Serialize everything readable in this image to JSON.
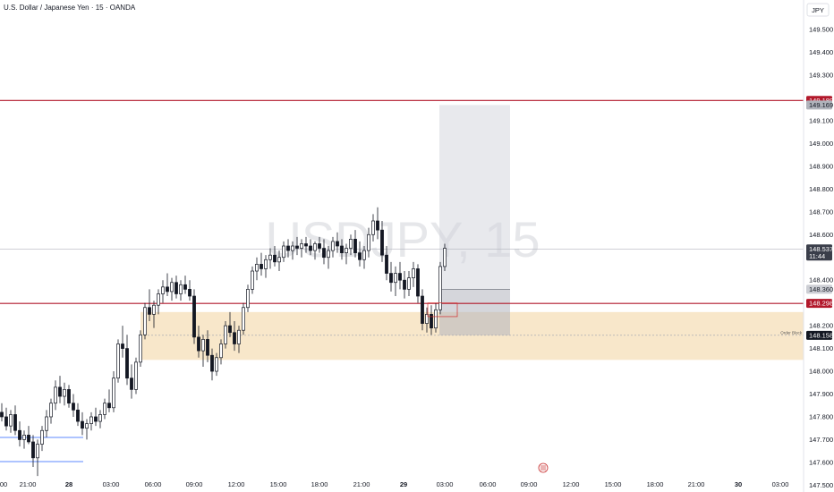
{
  "header": {
    "title": "U.S. Dollar / Japanese Yen · 15 · OANDA",
    "watermark": "USDJPY, 15",
    "currency": "JPY"
  },
  "chart_data": {
    "type": "candlestick",
    "symbol": "USDJPY",
    "interval": "15",
    "broker": "OANDA",
    "ylim": [
      147.47,
      149.63
    ],
    "y_ticks": [
      "149.500",
      "149.400",
      "149.300",
      "149.100",
      "149.000",
      "148.900",
      "148.800",
      "148.700",
      "148.600",
      "148.400",
      "148.200",
      "148.100",
      "148.000",
      "147.900",
      "147.800",
      "147.700",
      "147.600",
      "147.500"
    ],
    "x_ticks": [
      "00",
      "21:00",
      "28",
      "03:00",
      "06:00",
      "09:00",
      "12:00",
      "15:00",
      "18:00",
      "21:00",
      "29",
      "03:00",
      "06:00",
      "09:00",
      "12:00",
      "15:00",
      "18:00",
      "21:00",
      "30",
      "03:00"
    ],
    "price_tags": [
      {
        "label": "149.189",
        "price": 149.189,
        "bg": "#b2182b",
        "fg": "#ffffff"
      },
      {
        "label": "149.169",
        "price": 149.169,
        "bg": "#b0b3bb",
        "fg": "#131722"
      },
      {
        "label": "148.537",
        "price": 148.537,
        "bg": "#3a3e4a",
        "fg": "#ffffff",
        "sub": "11:44"
      },
      {
        "label": "148.360",
        "price": 148.36,
        "bg": "#ccced4",
        "fg": "#131722"
      },
      {
        "label": "148.298",
        "price": 148.298,
        "bg": "#b2182b",
        "fg": "#ffffff"
      },
      {
        "label": "148.158",
        "price": 148.158,
        "bg": "#131722",
        "fg": "#ffffff"
      }
    ],
    "order_block": {
      "label": "Order Block",
      "top": 148.26,
      "bottom": 148.05
    },
    "horizontal_lines": [
      {
        "price": 149.189,
        "color": "#b2182b"
      },
      {
        "price": 148.298,
        "color": "#b2182b"
      }
    ],
    "position_box": {
      "entry": 148.36,
      "target": 149.169,
      "stop": 148.158
    },
    "candles": [
      [
        147.82,
        147.86,
        147.78,
        147.8
      ],
      [
        147.8,
        147.84,
        147.74,
        147.76
      ],
      [
        147.76,
        147.83,
        147.73,
        147.81
      ],
      [
        147.81,
        147.85,
        147.72,
        147.74
      ],
      [
        147.74,
        147.78,
        147.67,
        147.7
      ],
      [
        147.7,
        147.74,
        147.66,
        147.72
      ],
      [
        147.72,
        147.76,
        147.68,
        147.69
      ],
      [
        147.69,
        147.72,
        147.58,
        147.62
      ],
      [
        147.62,
        147.7,
        147.54,
        147.68
      ],
      [
        147.68,
        147.76,
        147.65,
        147.74
      ],
      [
        147.74,
        147.83,
        147.71,
        147.8
      ],
      [
        147.8,
        147.88,
        147.77,
        147.86
      ],
      [
        147.86,
        147.96,
        147.83,
        147.93
      ],
      [
        147.93,
        147.98,
        147.86,
        147.89
      ],
      [
        147.89,
        147.95,
        147.85,
        147.92
      ],
      [
        147.92,
        147.94,
        147.84,
        147.86
      ],
      [
        147.86,
        147.9,
        147.8,
        147.83
      ],
      [
        147.83,
        147.86,
        147.76,
        147.78
      ],
      [
        147.78,
        147.82,
        147.72,
        147.75
      ],
      [
        147.75,
        147.79,
        147.7,
        147.77
      ],
      [
        147.77,
        147.82,
        147.74,
        147.8
      ],
      [
        147.8,
        147.84,
        147.76,
        147.78
      ],
      [
        147.78,
        147.83,
        147.75,
        147.81
      ],
      [
        147.81,
        147.88,
        147.79,
        147.86
      ],
      [
        147.86,
        147.92,
        147.82,
        147.84
      ],
      [
        147.84,
        148.0,
        147.82,
        147.97
      ],
      [
        147.97,
        148.14,
        147.95,
        148.12
      ],
      [
        148.12,
        148.2,
        148.06,
        148.1
      ],
      [
        148.1,
        148.16,
        147.94,
        147.97
      ],
      [
        147.97,
        148.03,
        147.88,
        147.92
      ],
      [
        147.92,
        148.06,
        147.9,
        148.04
      ],
      [
        148.04,
        148.18,
        148.02,
        148.16
      ],
      [
        148.16,
        148.3,
        148.14,
        148.28
      ],
      [
        148.28,
        148.36,
        148.22,
        148.25
      ],
      [
        148.25,
        148.31,
        148.19,
        148.29
      ],
      [
        148.29,
        148.36,
        148.25,
        148.34
      ],
      [
        148.34,
        148.4,
        148.3,
        148.37
      ],
      [
        148.37,
        148.43,
        148.33,
        148.35
      ],
      [
        148.35,
        148.41,
        148.31,
        148.39
      ],
      [
        148.39,
        148.42,
        148.32,
        148.34
      ],
      [
        148.34,
        148.4,
        148.31,
        148.38
      ],
      [
        148.38,
        148.42,
        148.34,
        148.36
      ],
      [
        148.36,
        148.4,
        148.31,
        148.33
      ],
      [
        148.33,
        148.36,
        148.12,
        148.15
      ],
      [
        148.15,
        148.2,
        148.06,
        148.09
      ],
      [
        148.09,
        148.16,
        148.02,
        148.14
      ],
      [
        148.14,
        148.18,
        148.04,
        148.07
      ],
      [
        148.07,
        148.1,
        147.96,
        148.0
      ],
      [
        148.0,
        148.08,
        147.98,
        148.06
      ],
      [
        148.06,
        148.14,
        148.03,
        148.12
      ],
      [
        148.12,
        148.22,
        148.1,
        148.2
      ],
      [
        148.2,
        148.26,
        148.15,
        148.17
      ],
      [
        148.17,
        148.22,
        148.09,
        148.12
      ],
      [
        148.12,
        148.2,
        148.08,
        148.18
      ],
      [
        148.18,
        148.3,
        148.16,
        148.28
      ],
      [
        148.28,
        148.38,
        148.26,
        148.36
      ],
      [
        148.36,
        148.46,
        148.34,
        148.44
      ],
      [
        148.44,
        148.5,
        148.4,
        148.47
      ],
      [
        148.47,
        148.52,
        148.42,
        148.45
      ],
      [
        148.45,
        148.51,
        148.41,
        148.49
      ],
      [
        148.49,
        148.54,
        148.45,
        148.51
      ],
      [
        148.51,
        148.55,
        148.46,
        148.48
      ],
      [
        148.48,
        148.53,
        148.44,
        148.5
      ],
      [
        148.5,
        148.57,
        148.48,
        148.55
      ],
      [
        148.55,
        148.58,
        148.5,
        148.53
      ],
      [
        148.53,
        148.57,
        148.49,
        148.55
      ],
      [
        148.55,
        148.59,
        148.51,
        148.54
      ],
      [
        148.54,
        148.58,
        148.5,
        148.56
      ],
      [
        148.56,
        148.59,
        148.52,
        148.55
      ],
      [
        148.55,
        148.58,
        148.51,
        148.53
      ],
      [
        148.53,
        148.57,
        148.49,
        148.56
      ],
      [
        148.56,
        148.59,
        148.52,
        148.54
      ],
      [
        148.54,
        148.58,
        148.47,
        148.5
      ],
      [
        148.5,
        148.55,
        148.45,
        148.53
      ],
      [
        148.53,
        148.59,
        148.5,
        148.57
      ],
      [
        148.57,
        148.61,
        148.52,
        148.55
      ],
      [
        148.55,
        148.58,
        148.49,
        148.52
      ],
      [
        148.52,
        148.56,
        148.47,
        148.54
      ],
      [
        148.54,
        148.6,
        148.51,
        148.58
      ],
      [
        148.58,
        148.62,
        148.5,
        148.52
      ],
      [
        148.52,
        148.57,
        148.46,
        148.49
      ],
      [
        148.49,
        148.55,
        148.45,
        148.53
      ],
      [
        148.53,
        148.63,
        148.5,
        148.6
      ],
      [
        148.6,
        148.69,
        148.57,
        148.66
      ],
      [
        148.66,
        148.72,
        148.58,
        148.62
      ],
      [
        148.62,
        148.66,
        148.48,
        148.51
      ],
      [
        148.51,
        148.55,
        148.4,
        148.43
      ],
      [
        148.43,
        148.48,
        148.35,
        148.39
      ],
      [
        148.39,
        148.46,
        148.33,
        148.43
      ],
      [
        148.43,
        148.48,
        148.36,
        148.4
      ],
      [
        148.4,
        148.44,
        148.32,
        148.36
      ],
      [
        148.36,
        148.44,
        148.33,
        148.41
      ],
      [
        148.41,
        148.48,
        148.37,
        148.45
      ],
      [
        148.45,
        148.47,
        148.3,
        148.33
      ],
      [
        148.33,
        148.36,
        148.18,
        148.21
      ],
      [
        148.21,
        148.28,
        148.17,
        148.25
      ],
      [
        148.25,
        148.29,
        148.16,
        148.19
      ],
      [
        148.19,
        148.3,
        148.17,
        148.27
      ],
      [
        148.27,
        148.48,
        148.25,
        148.46
      ],
      [
        148.46,
        148.56,
        148.44,
        148.54
      ]
    ]
  }
}
